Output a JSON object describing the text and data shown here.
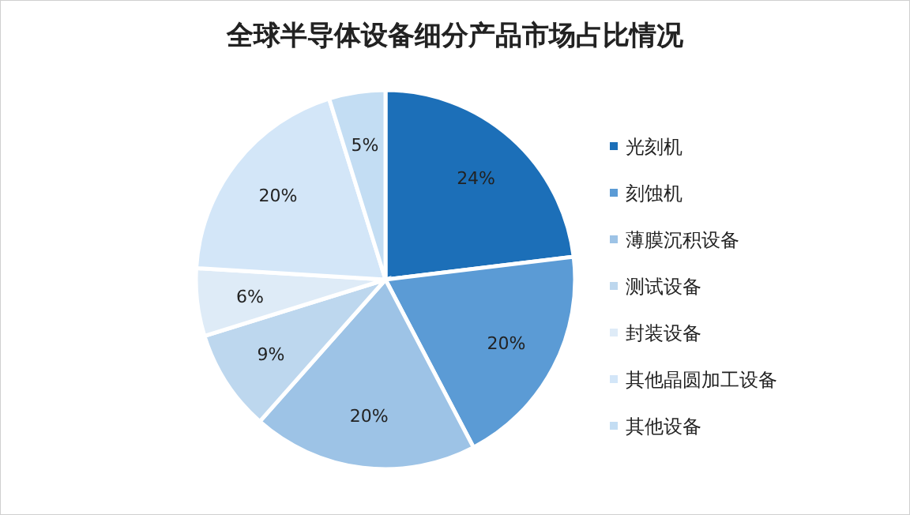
{
  "chart_data": {
    "type": "pie",
    "title": "全球半导体设备细分产品市场占比情况",
    "categories": [
      "光刻机",
      "刻蚀机",
      "薄膜沉积设备",
      "测试设备",
      "封装设备",
      "其他晶圆加工设备",
      "其他设备"
    ],
    "values": [
      24,
      20,
      20,
      9,
      6,
      20,
      5
    ],
    "colors": [
      "#1c6fb8",
      "#5b9bd5",
      "#9dc3e6",
      "#bdd7ee",
      "#deebf7",
      "#d3e6f8",
      "#c3ddf3"
    ],
    "value_labels": [
      "24%",
      "20%",
      "20%",
      "9%",
      "6%",
      "20%",
      "5%"
    ],
    "legend": "right"
  }
}
